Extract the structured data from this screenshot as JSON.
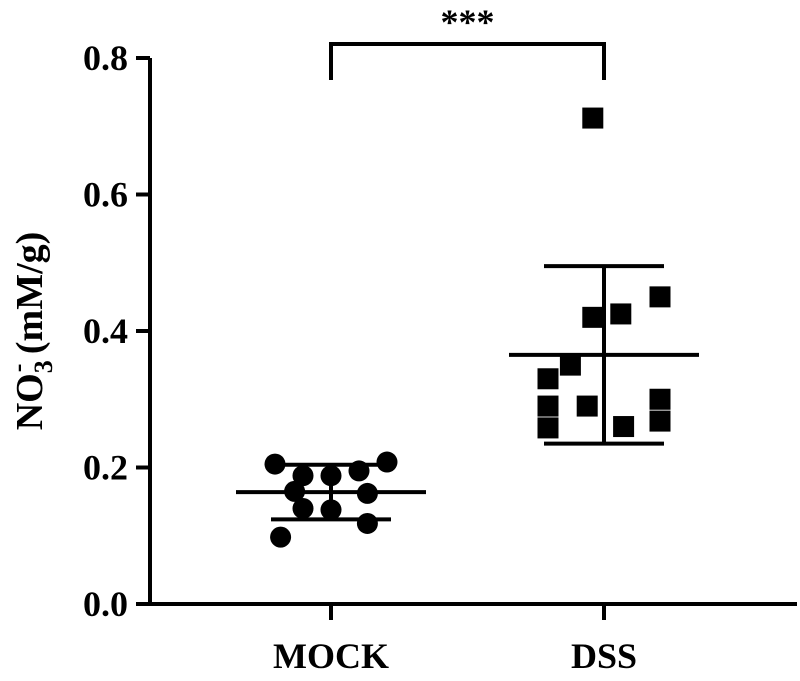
{
  "chart_data": {
    "type": "scatter",
    "title": "",
    "ylabel": {
      "main": "NO",
      "sub": "3",
      "sup": "-",
      "unit": " (mM/g)"
    },
    "ylim": [
      0,
      0.8
    ],
    "yticks": [
      "0.0",
      "0.2",
      "0.4",
      "0.6",
      "0.8"
    ],
    "ytick_values": [
      0,
      0.2,
      0.4,
      0.6,
      0.8
    ],
    "categories": [
      "MOCK",
      "DSS"
    ],
    "series": [
      {
        "category": "MOCK",
        "marker": "circle",
        "points": [
          {
            "offset": -2,
            "y": 0.205
          },
          {
            "offset": 2,
            "y": 0.208
          },
          {
            "offset": -1,
            "y": 0.188
          },
          {
            "offset": 0,
            "y": 0.188
          },
          {
            "offset": 1,
            "y": 0.195
          },
          {
            "offset": -1.3,
            "y": 0.165
          },
          {
            "offset": 1.3,
            "y": 0.162
          },
          {
            "offset": -1,
            "y": 0.14
          },
          {
            "offset": 0,
            "y": 0.138
          },
          {
            "offset": 1.3,
            "y": 0.118
          },
          {
            "offset": -1.8,
            "y": 0.098
          }
        ],
        "mean": 0.164,
        "sd": 0.04
      },
      {
        "category": "DSS",
        "marker": "square",
        "points": [
          {
            "offset": -0.4,
            "y": 0.712
          },
          {
            "offset": 2,
            "y": 0.45
          },
          {
            "offset": 0.6,
            "y": 0.425
          },
          {
            "offset": -0.4,
            "y": 0.42
          },
          {
            "offset": -2,
            "y": 0.33
          },
          {
            "offset": -1.2,
            "y": 0.35
          },
          {
            "offset": 2,
            "y": 0.3
          },
          {
            "offset": -2,
            "y": 0.29
          },
          {
            "offset": -0.6,
            "y": 0.29
          },
          {
            "offset": -2,
            "y": 0.258
          },
          {
            "offset": 0.7,
            "y": 0.26
          },
          {
            "offset": 2,
            "y": 0.268
          }
        ],
        "mean": 0.365,
        "sd": 0.13
      }
    ],
    "significance": {
      "label": "***",
      "between": [
        "MOCK",
        "DSS"
      ],
      "y": 0.815
    },
    "colors": {
      "marker": "#000000",
      "axis": "#000000"
    }
  }
}
